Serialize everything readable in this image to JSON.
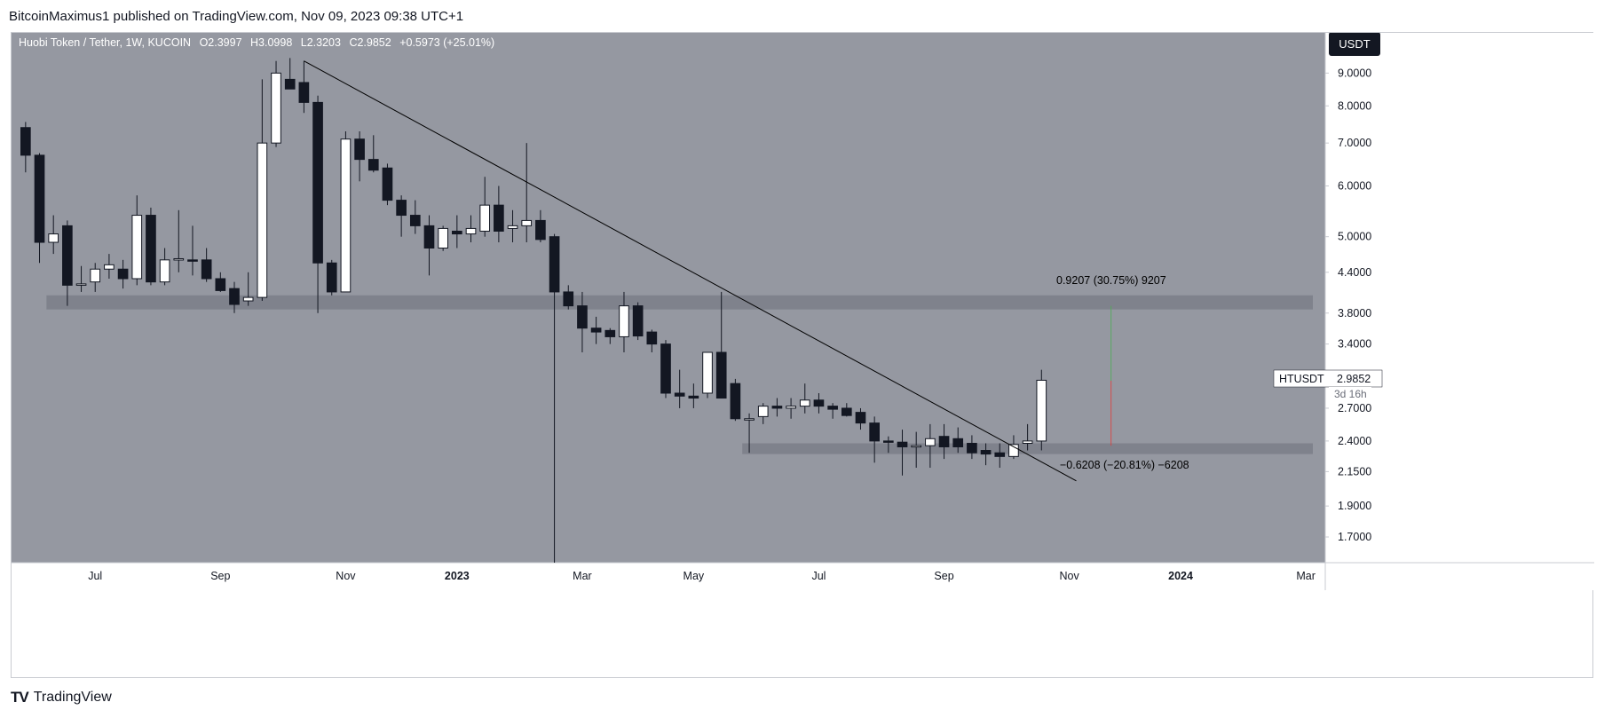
{
  "header": {
    "published": "BitcoinMaximus1 published on TradingView.com, Nov 09, 2023 09:38 UTC+1"
  },
  "legend": {
    "symbol": "Huobi Token / Tether, 1W, KUCOIN",
    "o_label": "O",
    "o": "2.3997",
    "h_label": "H",
    "h": "3.0998",
    "l_label": "L",
    "l": "2.3203",
    "c_label": "C",
    "c": "2.9852",
    "change": "+0.5973 (+25.01%)"
  },
  "currency_button": "USDT",
  "price_tag": {
    "ticker": "HTUSDT",
    "price": "2.9852",
    "countdown": "3d 16h"
  },
  "annotations": {
    "upper_measure": "0.9207 (30.75%) 9207",
    "lower_measure": "−0.6208 (−20.81%) −6208"
  },
  "footer": {
    "brand": "TradingView",
    "logo": "TV"
  },
  "colors": {
    "background": "#9598a1",
    "zone": "#7b7e88",
    "bull": "#ffffff",
    "bear": "#131722",
    "line": "#000000"
  },
  "chart_data": {
    "type": "candlestick",
    "title": "Huobi Token / Tether, 1W, KUCOIN",
    "scale": "log",
    "ylim": [
      1.55,
      10.4
    ],
    "y_ticks": [
      "9.0000",
      "8.0000",
      "7.0000",
      "6.0000",
      "5.0000",
      "4.4000",
      "3.8000",
      "3.4000",
      "2.7000",
      "2.4000",
      "2.1500",
      "1.9000",
      "1.7000"
    ],
    "x_ticks": [
      "Jul",
      "Sep",
      "Nov",
      "2023",
      "Mar",
      "May",
      "Jul",
      "Sep",
      "Nov",
      "2024",
      "Mar"
    ],
    "x_tick_week_index": [
      5,
      14,
      23,
      31,
      40,
      48,
      57,
      66,
      75,
      83,
      92
    ],
    "total_weeks": 93,
    "candles": [
      {
        "o": 7.4,
        "h": 7.55,
        "l": 6.3,
        "c": 6.7
      },
      {
        "o": 6.7,
        "h": 6.75,
        "l": 4.55,
        "c": 4.9
      },
      {
        "o": 4.9,
        "h": 5.4,
        "l": 4.7,
        "c": 5.05
      },
      {
        "o": 5.2,
        "h": 5.3,
        "l": 3.9,
        "c": 4.2
      },
      {
        "o": 4.2,
        "h": 4.5,
        "l": 4.1,
        "c": 4.22
      },
      {
        "o": 4.25,
        "h": 4.55,
        "l": 4.1,
        "c": 4.45
      },
      {
        "o": 4.45,
        "h": 4.7,
        "l": 4.3,
        "c": 4.52
      },
      {
        "o": 4.45,
        "h": 4.6,
        "l": 4.15,
        "c": 4.3
      },
      {
        "o": 4.3,
        "h": 5.8,
        "l": 4.2,
        "c": 5.4
      },
      {
        "o": 5.4,
        "h": 5.55,
        "l": 4.2,
        "c": 4.25
      },
      {
        "o": 4.25,
        "h": 4.8,
        "l": 4.2,
        "c": 4.6
      },
      {
        "o": 4.6,
        "h": 5.5,
        "l": 4.4,
        "c": 4.62
      },
      {
        "o": 4.6,
        "h": 5.2,
        "l": 4.35,
        "c": 4.58
      },
      {
        "o": 4.6,
        "h": 4.8,
        "l": 4.25,
        "c": 4.3
      },
      {
        "o": 4.3,
        "h": 4.4,
        "l": 4.1,
        "c": 4.12
      },
      {
        "o": 4.15,
        "h": 4.25,
        "l": 3.8,
        "c": 3.92
      },
      {
        "o": 3.97,
        "h": 4.4,
        "l": 3.9,
        "c": 4.02
      },
      {
        "o": 4.02,
        "h": 8.8,
        "l": 3.97,
        "c": 7.0
      },
      {
        "o": 7.0,
        "h": 9.4,
        "l": 6.9,
        "c": 9.0
      },
      {
        "o": 8.8,
        "h": 9.5,
        "l": 8.5,
        "c": 8.5
      },
      {
        "o": 8.7,
        "h": 9.4,
        "l": 7.8,
        "c": 8.1
      },
      {
        "o": 8.1,
        "h": 8.3,
        "l": 3.8,
        "c": 4.55
      },
      {
        "o": 4.55,
        "h": 4.6,
        "l": 4.05,
        "c": 4.1
      },
      {
        "o": 4.1,
        "h": 7.3,
        "l": 4.1,
        "c": 7.1
      },
      {
        "o": 7.1,
        "h": 7.3,
        "l": 6.1,
        "c": 6.6
      },
      {
        "o": 6.6,
        "h": 7.2,
        "l": 6.3,
        "c": 6.35
      },
      {
        "o": 6.4,
        "h": 6.5,
        "l": 5.6,
        "c": 5.7
      },
      {
        "o": 5.7,
        "h": 5.8,
        "l": 5.0,
        "c": 5.4
      },
      {
        "o": 5.4,
        "h": 5.7,
        "l": 5.05,
        "c": 5.2
      },
      {
        "o": 5.2,
        "h": 5.4,
        "l": 4.35,
        "c": 4.8
      },
      {
        "o": 4.8,
        "h": 5.2,
        "l": 4.75,
        "c": 5.15
      },
      {
        "o": 5.1,
        "h": 5.4,
        "l": 4.8,
        "c": 5.05
      },
      {
        "o": 5.05,
        "h": 5.4,
        "l": 4.9,
        "c": 5.15
      },
      {
        "o": 5.1,
        "h": 6.2,
        "l": 5.0,
        "c": 5.6
      },
      {
        "o": 5.6,
        "h": 6.0,
        "l": 4.9,
        "c": 5.1
      },
      {
        "o": 5.15,
        "h": 5.5,
        "l": 4.9,
        "c": 5.2
      },
      {
        "o": 5.2,
        "h": 7.0,
        "l": 4.9,
        "c": 5.3
      },
      {
        "o": 5.3,
        "h": 5.5,
        "l": 4.9,
        "c": 4.95
      },
      {
        "o": 5.0,
        "h": 5.05,
        "l": 1.55,
        "c": 4.1
      },
      {
        "o": 4.1,
        "h": 4.2,
        "l": 3.85,
        "c": 3.9
      },
      {
        "o": 3.9,
        "h": 4.1,
        "l": 3.3,
        "c": 3.6
      },
      {
        "o": 3.6,
        "h": 3.75,
        "l": 3.4,
        "c": 3.55
      },
      {
        "o": 3.57,
        "h": 3.6,
        "l": 3.4,
        "c": 3.49
      },
      {
        "o": 3.49,
        "h": 4.1,
        "l": 3.3,
        "c": 3.9
      },
      {
        "o": 3.9,
        "h": 3.95,
        "l": 3.45,
        "c": 3.5
      },
      {
        "o": 3.55,
        "h": 3.58,
        "l": 3.3,
        "c": 3.4
      },
      {
        "o": 3.4,
        "h": 3.45,
        "l": 2.8,
        "c": 2.85
      },
      {
        "o": 2.85,
        "h": 3.1,
        "l": 2.7,
        "c": 2.82
      },
      {
        "o": 2.82,
        "h": 2.95,
        "l": 2.7,
        "c": 2.8
      },
      {
        "o": 2.85,
        "h": 3.3,
        "l": 2.8,
        "c": 3.3
      },
      {
        "o": 3.3,
        "h": 4.1,
        "l": 2.8,
        "c": 2.8
      },
      {
        "o": 2.95,
        "h": 3.0,
        "l": 2.58,
        "c": 2.6
      },
      {
        "o": 2.6,
        "h": 2.65,
        "l": 2.3,
        "c": 2.6
      },
      {
        "o": 2.62,
        "h": 2.75,
        "l": 2.55,
        "c": 2.72
      },
      {
        "o": 2.72,
        "h": 2.8,
        "l": 2.62,
        "c": 2.7
      },
      {
        "o": 2.7,
        "h": 2.8,
        "l": 2.6,
        "c": 2.72
      },
      {
        "o": 2.72,
        "h": 2.95,
        "l": 2.65,
        "c": 2.78
      },
      {
        "o": 2.78,
        "h": 2.85,
        "l": 2.65,
        "c": 2.72
      },
      {
        "o": 2.72,
        "h": 2.75,
        "l": 2.6,
        "c": 2.69
      },
      {
        "o": 2.7,
        "h": 2.75,
        "l": 2.62,
        "c": 2.63
      },
      {
        "o": 2.66,
        "h": 2.7,
        "l": 2.5,
        "c": 2.56
      },
      {
        "o": 2.56,
        "h": 2.62,
        "l": 2.22,
        "c": 2.4
      },
      {
        "o": 2.4,
        "h": 2.44,
        "l": 2.3,
        "c": 2.39
      },
      {
        "o": 2.39,
        "h": 2.5,
        "l": 2.12,
        "c": 2.35
      },
      {
        "o": 2.35,
        "h": 2.48,
        "l": 2.18,
        "c": 2.36
      },
      {
        "o": 2.36,
        "h": 2.55,
        "l": 2.18,
        "c": 2.42
      },
      {
        "o": 2.44,
        "h": 2.55,
        "l": 2.25,
        "c": 2.35
      },
      {
        "o": 2.42,
        "h": 2.52,
        "l": 2.3,
        "c": 2.35
      },
      {
        "o": 2.38,
        "h": 2.45,
        "l": 2.25,
        "c": 2.3
      },
      {
        "o": 2.32,
        "h": 2.38,
        "l": 2.2,
        "c": 2.29
      },
      {
        "o": 2.3,
        "h": 2.38,
        "l": 2.18,
        "c": 2.27
      },
      {
        "o": 2.27,
        "h": 2.45,
        "l": 2.25,
        "c": 2.37
      },
      {
        "o": 2.38,
        "h": 2.55,
        "l": 2.32,
        "c": 2.4
      },
      {
        "o": 2.3997,
        "h": 3.0998,
        "l": 2.3203,
        "c": 2.9852
      }
    ],
    "support_zones": [
      {
        "from_week": 2,
        "to_week": 93,
        "low": 3.85,
        "high": 4.05
      },
      {
        "from_week": 52,
        "to_week": 93,
        "low": 2.29,
        "high": 2.38
      }
    ],
    "trendline": {
      "from_week": 20,
      "from_price": 9.4,
      "to_week": 75.5,
      "to_price": 2.08
    },
    "measure_markers": [
      {
        "week": 78,
        "from_price": 2.98,
        "to_price": 3.9,
        "color": "#4caf50"
      },
      {
        "week": 78,
        "from_price": 2.98,
        "to_price": 2.36,
        "color": "#e53935"
      }
    ]
  }
}
